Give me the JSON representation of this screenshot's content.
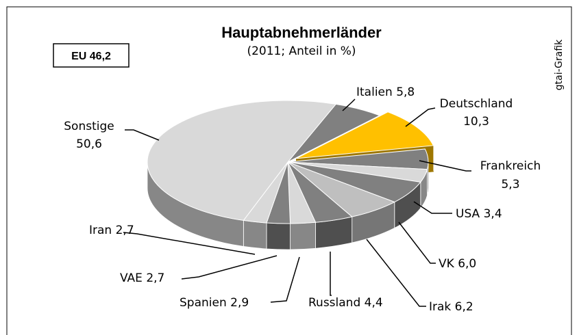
{
  "chart_data": {
    "type": "pie",
    "title": "Hauptabnehmerländer",
    "subtitle": "(2011; Anteil in %)",
    "annotations": {
      "eu_box": "EU 46,2",
      "source": "gtai-Grafik"
    },
    "categories": [
      "Italien",
      "Deutschland",
      "Frankreich",
      "USA",
      "VK",
      "Irak",
      "Russland",
      "Spanien",
      "VAE",
      "Iran",
      "Sonstige"
    ],
    "values": [
      5.8,
      10.3,
      5.3,
      3.4,
      6.0,
      6.2,
      4.4,
      2.9,
      2.7,
      2.7,
      50.6
    ],
    "value_labels": [
      "5,8",
      "10,3",
      "5,3",
      "3,4",
      "6,0",
      "6,2",
      "4,4",
      "2,9",
      "2,7",
      "2,7",
      "50,6"
    ],
    "colors": [
      "#808080",
      "#ffc000",
      "#808080",
      "#d9d9d9",
      "#808080",
      "#bfbfbf",
      "#808080",
      "#d9d9d9",
      "#808080",
      "#d9d9d9",
      "#d9d9d9"
    ],
    "exploded": "Deutschland"
  }
}
